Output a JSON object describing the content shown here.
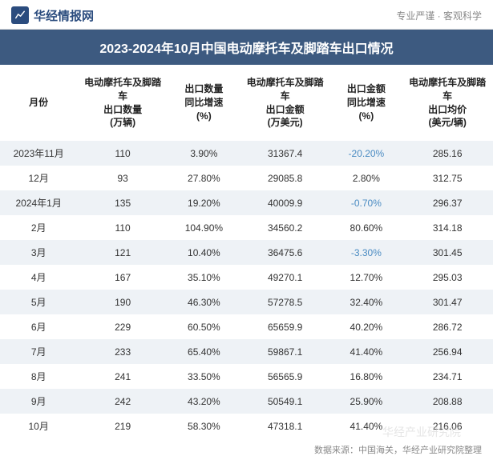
{
  "header": {
    "logo_text": "华经情报网",
    "slogan": "专业严谨 · 客观科学"
  },
  "title": "2023-2024年10月中国电动摩托车及脚踏车出口情况",
  "table": {
    "columns": [
      "月份",
      "电动摩托车及脚踏车出口数量(万辆)",
      "出口数量同比增速(%)",
      "电动摩托车及脚踏车出口金额(万美元)",
      "出口金额同比增速(%)",
      "电动摩托车及脚踏车出口均价(美元/辆)"
    ],
    "rows": [
      {
        "month": "2023年11月",
        "qty": "110",
        "qty_yoy": "3.90%",
        "qty_yoy_neg": false,
        "amt": "31367.4",
        "amt_yoy": "-20.20%",
        "amt_yoy_neg": true,
        "price": "285.16"
      },
      {
        "month": "12月",
        "qty": "93",
        "qty_yoy": "27.80%",
        "qty_yoy_neg": false,
        "amt": "29085.8",
        "amt_yoy": "2.80%",
        "amt_yoy_neg": false,
        "price": "312.75"
      },
      {
        "month": "2024年1月",
        "qty": "135",
        "qty_yoy": "19.20%",
        "qty_yoy_neg": false,
        "amt": "40009.9",
        "amt_yoy": "-0.70%",
        "amt_yoy_neg": true,
        "price": "296.37"
      },
      {
        "month": "2月",
        "qty": "110",
        "qty_yoy": "104.90%",
        "qty_yoy_neg": false,
        "amt": "34560.2",
        "amt_yoy": "80.60%",
        "amt_yoy_neg": false,
        "price": "314.18"
      },
      {
        "month": "3月",
        "qty": "121",
        "qty_yoy": "10.40%",
        "qty_yoy_neg": false,
        "amt": "36475.6",
        "amt_yoy": "-3.30%",
        "amt_yoy_neg": true,
        "price": "301.45"
      },
      {
        "month": "4月",
        "qty": "167",
        "qty_yoy": "35.10%",
        "qty_yoy_neg": false,
        "amt": "49270.1",
        "amt_yoy": "12.70%",
        "amt_yoy_neg": false,
        "price": "295.03"
      },
      {
        "month": "5月",
        "qty": "190",
        "qty_yoy": "46.30%",
        "qty_yoy_neg": false,
        "amt": "57278.5",
        "amt_yoy": "32.40%",
        "amt_yoy_neg": false,
        "price": "301.47"
      },
      {
        "month": "6月",
        "qty": "229",
        "qty_yoy": "60.50%",
        "qty_yoy_neg": false,
        "amt": "65659.9",
        "amt_yoy": "40.20%",
        "amt_yoy_neg": false,
        "price": "286.72"
      },
      {
        "month": "7月",
        "qty": "233",
        "qty_yoy": "65.40%",
        "qty_yoy_neg": false,
        "amt": "59867.1",
        "amt_yoy": "41.40%",
        "amt_yoy_neg": false,
        "price": "256.94"
      },
      {
        "month": "8月",
        "qty": "241",
        "qty_yoy": "33.50%",
        "qty_yoy_neg": false,
        "amt": "56565.9",
        "amt_yoy": "16.80%",
        "amt_yoy_neg": false,
        "price": "234.71"
      },
      {
        "month": "9月",
        "qty": "242",
        "qty_yoy": "43.20%",
        "qty_yoy_neg": false,
        "amt": "50549.1",
        "amt_yoy": "25.90%",
        "amt_yoy_neg": false,
        "price": "208.88"
      },
      {
        "month": "10月",
        "qty": "219",
        "qty_yoy": "58.30%",
        "qty_yoy_neg": false,
        "amt": "47318.1",
        "amt_yoy": "41.40%",
        "amt_yoy_neg": false,
        "price": "216.06"
      }
    ],
    "alt_row_bg": "#eef2f6",
    "neg_color": "#4a8bc2",
    "text_color": "#333333"
  },
  "source": "数据来源：中国海关，华经产业研究院整理",
  "watermark": "华经产业研究院",
  "colors": {
    "title_bg": "#3d5a80",
    "title_fg": "#ffffff",
    "logo_color": "#2b4c7e",
    "slogan_color": "#888888"
  }
}
